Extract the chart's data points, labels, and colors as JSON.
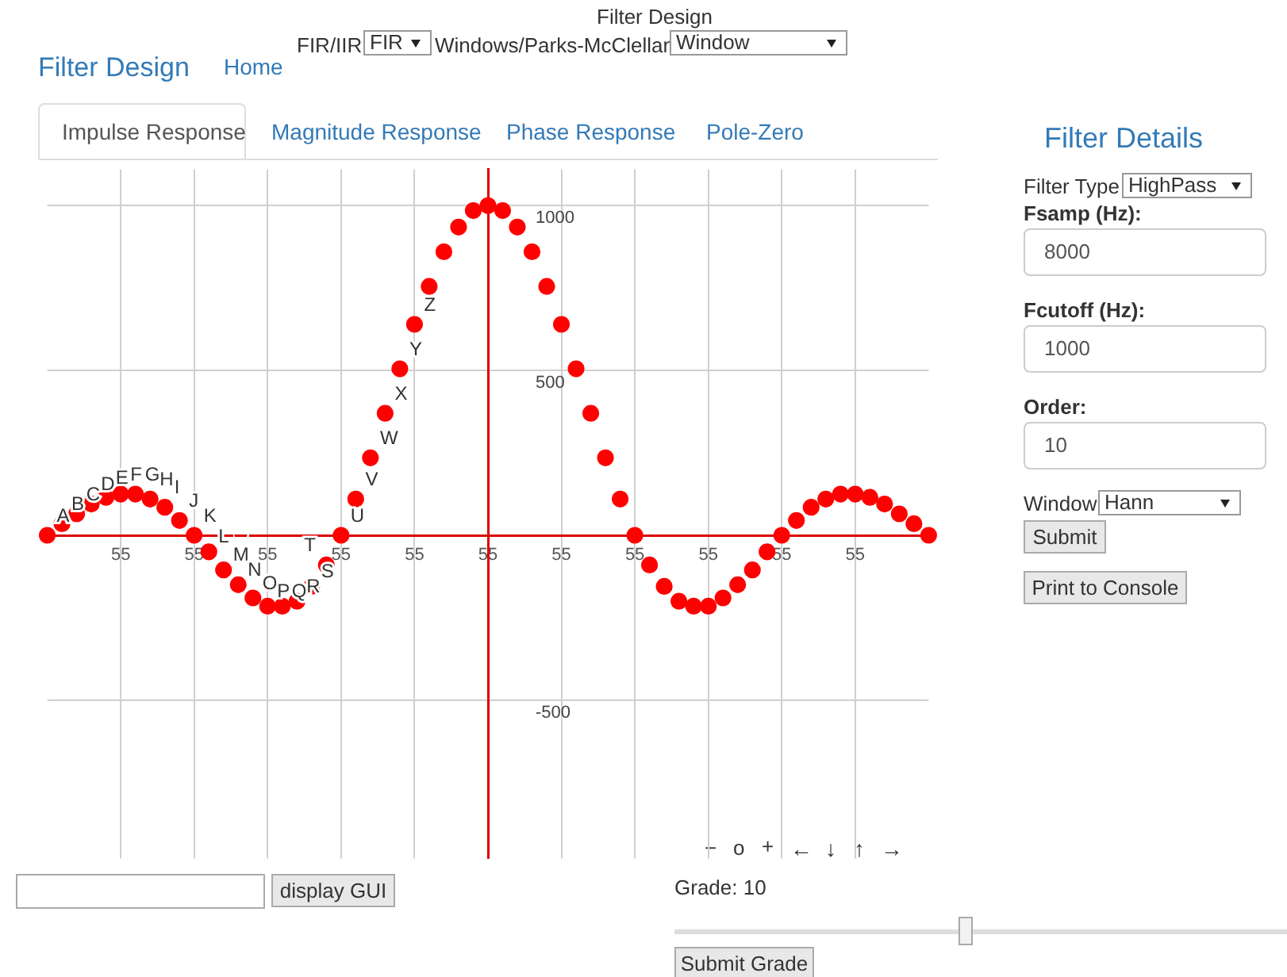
{
  "chart_data": {
    "type": "scatter",
    "categories": [
      null,
      null,
      null,
      null,
      null,
      "55",
      null,
      null,
      null,
      null,
      "55",
      null,
      null,
      null,
      null,
      "55",
      null,
      null,
      null,
      null,
      "55",
      null,
      null,
      null,
      null,
      "55",
      null,
      null,
      null,
      null,
      "55",
      null,
      null,
      null,
      null,
      "55",
      null,
      null,
      null,
      null,
      "55",
      null,
      null,
      null,
      null,
      "55",
      null,
      null,
      null,
      null,
      "55",
      null,
      null,
      null,
      null,
      "55",
      null,
      null,
      null,
      null,
      null
    ],
    "series": [
      {
        "color": "#ff0000",
        "values": [
          0,
          35,
          65,
          95,
          115,
          125,
          125,
          110,
          85,
          45,
          0,
          -50,
          -105,
          -150,
          -190,
          -215,
          -215,
          -200,
          -155,
          -90,
          0,
          110,
          235,
          370,
          505,
          640,
          755,
          860,
          935,
          985,
          1000,
          985,
          935,
          860,
          755,
          640,
          505,
          370,
          235,
          110,
          0,
          -90,
          -155,
          -200,
          -215,
          -215,
          -190,
          -150,
          -105,
          -50,
          0,
          45,
          85,
          110,
          125,
          125,
          115,
          95,
          65,
          35,
          0
        ]
      }
    ],
    "ylim": [
      -980,
      1110
    ],
    "yticks": [
      -500,
      {
        "value": 0,
        "label": null
      },
      500,
      1000
    ],
    "grid": true,
    "marker": "circle",
    "annotations": [
      "A",
      "B",
      "C",
      "D",
      "E",
      "F",
      "G",
      "H",
      "I",
      "J",
      "K",
      "L",
      "M",
      "N",
      "O",
      "P",
      "Q",
      "R",
      "S",
      "T",
      "U",
      "V",
      "W",
      "X",
      "Y",
      "Z",
      "Filter Design",
      "FIR/IIR",
      "FIR",
      "Windows/Parks-McClellan",
      "Window",
      "Filter Design",
      "Home",
      "Impulse Response",
      "Magnitude Response",
      "Phase Response",
      "Pole-Zero",
      "Filter Details",
      "Filter Type",
      "HighPass",
      "Fsamp (Hz):",
      "8000",
      "Fcutoff (Hz):",
      "1000",
      "Order:",
      "10",
      "Window",
      "Hann",
      "Submit",
      "Print to Console",
      "display GUI",
      "Grade: 10",
      "Submit Grade",
      "−",
      "o",
      "+",
      "←",
      "↓",
      "↑",
      "→"
    ]
  }
}
